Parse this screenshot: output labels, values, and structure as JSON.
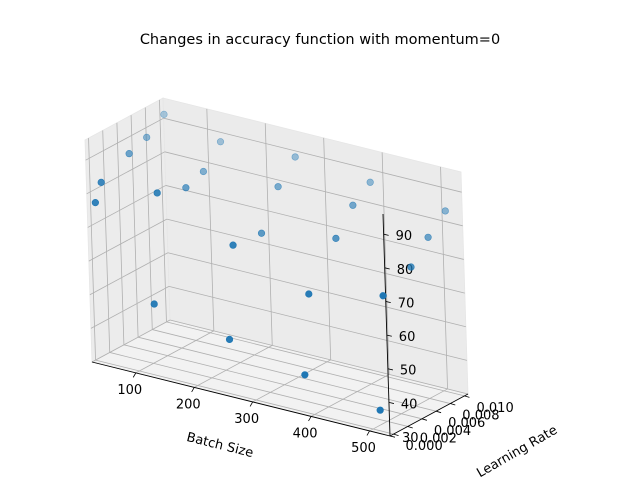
{
  "chart_data": {
    "type": "scatter",
    "projection": "3d",
    "title": "Changes in accuracy function with momentum=0",
    "xlabel": "Batch Size",
    "ylabel": "Learning Rate",
    "zlabel": "",
    "xlim": [
      25,
      535
    ],
    "ylim": [
      -0.0005,
      0.0105
    ],
    "zlim": [
      30,
      96
    ],
    "x_ticks": [
      "100",
      "200",
      "300",
      "400",
      "500"
    ],
    "y_ticks": [
      "0.000",
      "0.002",
      "0.004",
      "0.006",
      "0.008",
      "0.010"
    ],
    "z_ticks": [
      "30",
      "40",
      "50",
      "60",
      "70",
      "80",
      "90"
    ],
    "grid": true,
    "series": [
      {
        "color": "#1f77b4",
        "points": [
          {
            "x": 32,
            "y": 0.0001,
            "z": 77
          },
          {
            "x": 32,
            "y": 0.001,
            "z": 82
          },
          {
            "x": 32,
            "y": 0.005,
            "z": 86
          },
          {
            "x": 32,
            "y": 0.0075,
            "z": 88
          },
          {
            "x": 32,
            "y": 0.01,
            "z": 92
          },
          {
            "x": 128,
            "y": 0.0001,
            "z": 51
          },
          {
            "x": 128,
            "y": 0.001,
            "z": 83
          },
          {
            "x": 128,
            "y": 0.005,
            "z": 80
          },
          {
            "x": 128,
            "y": 0.0075,
            "z": 82
          },
          {
            "x": 128,
            "y": 0.01,
            "z": 88
          },
          {
            "x": 256,
            "y": 0.0001,
            "z": 46
          },
          {
            "x": 256,
            "y": 0.001,
            "z": 73
          },
          {
            "x": 256,
            "y": 0.005,
            "z": 72
          },
          {
            "x": 256,
            "y": 0.0075,
            "z": 83
          },
          {
            "x": 256,
            "y": 0.01,
            "z": 89
          },
          {
            "x": 384,
            "y": 0.0001,
            "z": 41
          },
          {
            "x": 384,
            "y": 0.001,
            "z": 64
          },
          {
            "x": 384,
            "y": 0.005,
            "z": 76
          },
          {
            "x": 384,
            "y": 0.0075,
            "z": 83
          },
          {
            "x": 384,
            "y": 0.01,
            "z": 87
          },
          {
            "x": 512,
            "y": 0.0001,
            "z": 36
          },
          {
            "x": 512,
            "y": 0.001,
            "z": 69
          },
          {
            "x": 512,
            "y": 0.005,
            "z": 73
          },
          {
            "x": 512,
            "y": 0.0075,
            "z": 79
          },
          {
            "x": 512,
            "y": 0.01,
            "z": 84
          }
        ]
      }
    ]
  }
}
